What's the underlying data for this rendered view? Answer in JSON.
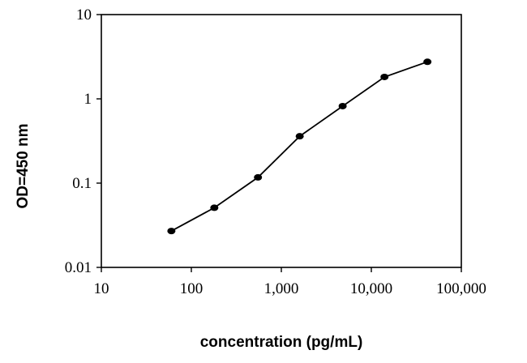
{
  "chart_data": {
    "type": "line",
    "title": "",
    "xlabel": "concentration (pg/mL)",
    "ylabel": "OD=450 nm",
    "x_scale": "log",
    "y_scale": "log",
    "xlim": [
      10,
      100000
    ],
    "ylim": [
      0.01,
      10
    ],
    "x_ticks": [
      10,
      100,
      1000,
      10000,
      100000
    ],
    "x_tick_labels": [
      "10",
      "100",
      "1,000",
      "10,000",
      "100,000"
    ],
    "y_ticks": [
      0.01,
      0.1,
      1,
      10
    ],
    "y_tick_labels": [
      "0.01",
      "0.1",
      "1",
      "10"
    ],
    "grid": false,
    "legend": "none",
    "series": [
      {
        "color": "#000000",
        "x": [
          60,
          180,
          550,
          1600,
          4800,
          14000,
          42000
        ],
        "y": [
          0.027,
          0.051,
          0.117,
          0.36,
          0.82,
          1.82,
          2.75
        ]
      }
    ]
  }
}
